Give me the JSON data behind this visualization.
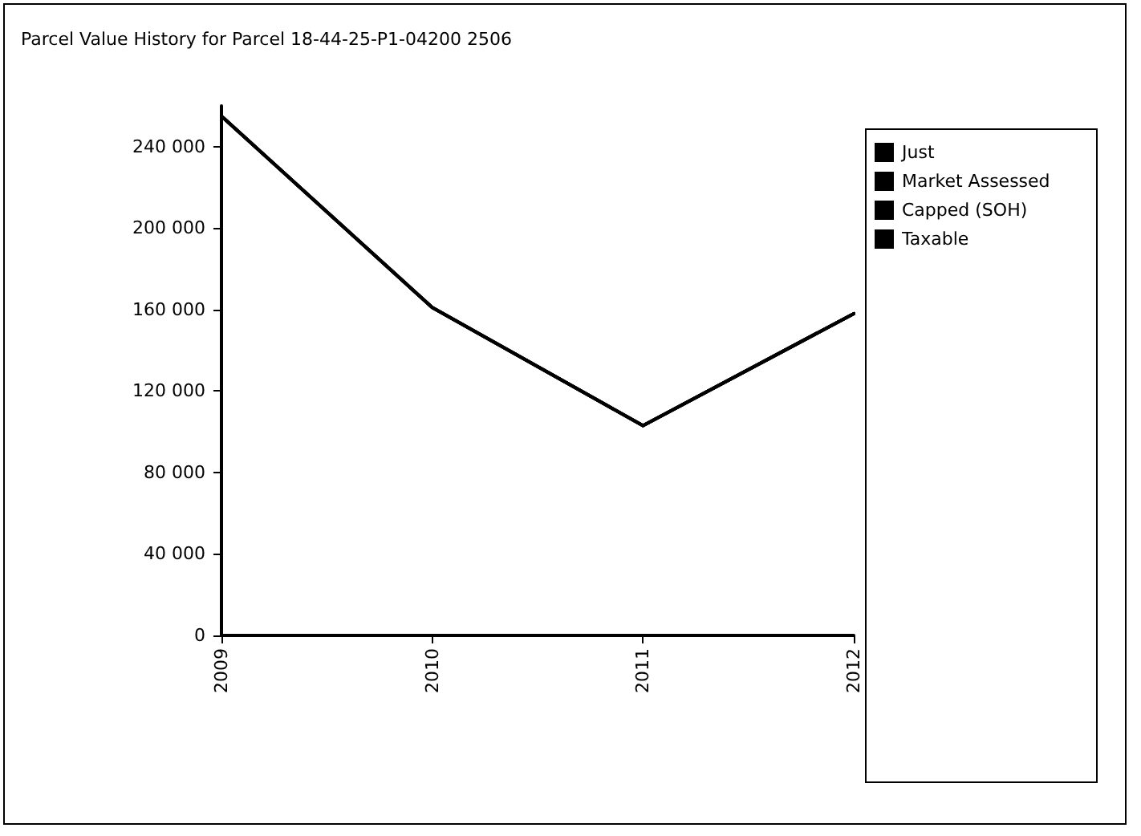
{
  "chart_data": {
    "type": "line",
    "title": "Parcel Value History for Parcel 18-44-25-P1-04200 2506",
    "categories": [
      "2009",
      "2010",
      "2011",
      "2012"
    ],
    "series": [
      {
        "name": "Just",
        "color": "#000000",
        "values": [
          255000,
          161000,
          103000,
          158000
        ]
      },
      {
        "name": "Market Assessed",
        "color": "#000000",
        "values": [
          255000,
          161000,
          103000,
          158000
        ]
      },
      {
        "name": "Capped (SOH)",
        "color": "#000000",
        "values": [
          255000,
          161000,
          103000,
          158000
        ]
      },
      {
        "name": "Taxable",
        "color": "#000000",
        "values": [
          255000,
          161000,
          103000,
          158000
        ]
      }
    ],
    "ylim": [
      0,
      260000
    ],
    "yticks": [
      0,
      {
        "value": 40000,
        "label": "40 000"
      },
      {
        "value": 80000,
        "label": "80 000"
      },
      {
        "value": 120000,
        "label": "120 000"
      },
      {
        "value": 160000,
        "label": "160 000"
      },
      {
        "value": 200000,
        "label": "200 000"
      },
      {
        "value": 240000,
        "label": "240 000"
      }
    ],
    "grid": false,
    "legend": "right",
    "marker": "none",
    "line_style": "solid"
  }
}
